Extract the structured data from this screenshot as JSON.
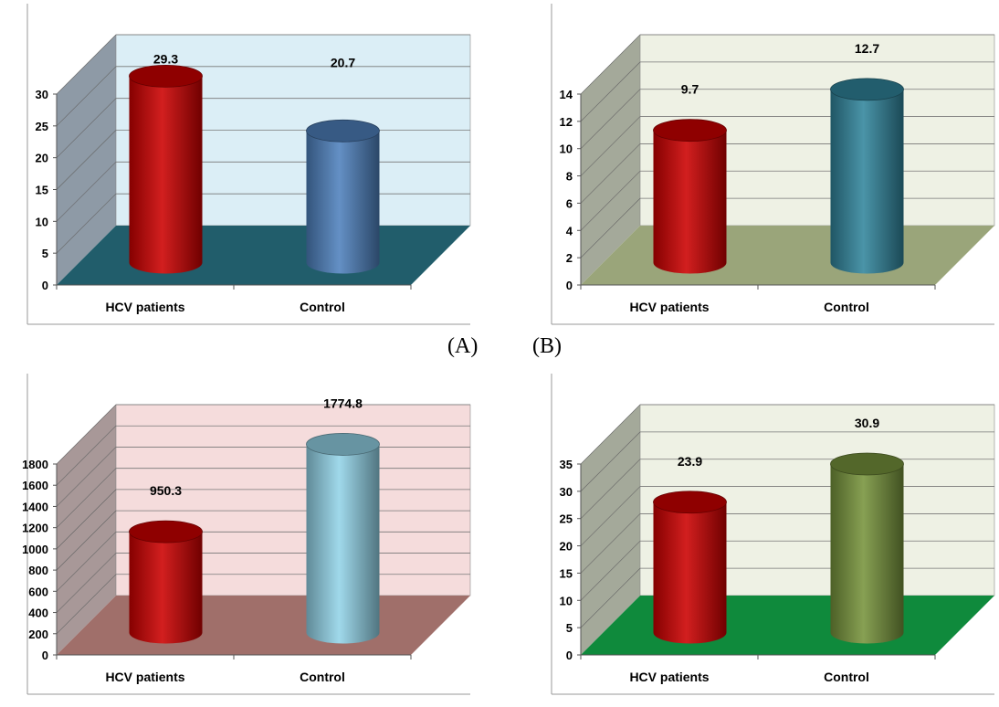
{
  "panel_labels": [
    "(A)",
    "(B)"
  ],
  "chart_data": [
    {
      "type": "bar",
      "categories": [
        "HCV patients",
        "Control"
      ],
      "values": [
        29.3,
        20.7
      ],
      "ylim": [
        0,
        30
      ],
      "yticks": [
        0,
        5,
        10,
        15,
        20,
        25,
        30
      ],
      "grid": true,
      "colors": {
        "bars": [
          "#cc0000",
          "#4f81bd"
        ],
        "wall": "#dbeef6",
        "side_wall": "#8e9aa6",
        "floor": "#215d6b"
      }
    },
    {
      "type": "bar",
      "categories": [
        "HCV patients",
        "Control"
      ],
      "values": [
        9.7,
        12.7
      ],
      "ylim": [
        0,
        14
      ],
      "yticks": [
        0,
        2,
        4,
        6,
        8,
        10,
        12,
        14
      ],
      "grid": true,
      "colors": {
        "bars": [
          "#cc0000",
          "#31859c"
        ],
        "wall": "#eef1e4",
        "side_wall": "#a4a99a",
        "floor": "#9aa57a"
      }
    },
    {
      "type": "bar",
      "categories": [
        "HCV patients",
        "Control"
      ],
      "values": [
        950.3,
        1774.8
      ],
      "ylim": [
        0,
        1800
      ],
      "yticks": [
        0,
        200,
        400,
        600,
        800,
        1000,
        1200,
        1400,
        1600,
        1800
      ],
      "grid": true,
      "colors": {
        "bars": [
          "#cc0000",
          "#93d4e8"
        ],
        "wall": "#f5dcdc",
        "side_wall": "#a89898",
        "floor": "#a06f6a"
      }
    },
    {
      "type": "bar",
      "categories": [
        "HCV patients",
        "Control"
      ],
      "values": [
        23.9,
        30.9
      ],
      "ylim": [
        0,
        35
      ],
      "yticks": [
        0,
        5,
        10,
        15,
        20,
        25,
        30,
        35
      ],
      "grid": true,
      "colors": {
        "bars": [
          "#cc0000",
          "#77933c"
        ],
        "wall": "#eef1e4",
        "side_wall": "#a4a99a",
        "floor": "#0f8a3c"
      }
    }
  ]
}
